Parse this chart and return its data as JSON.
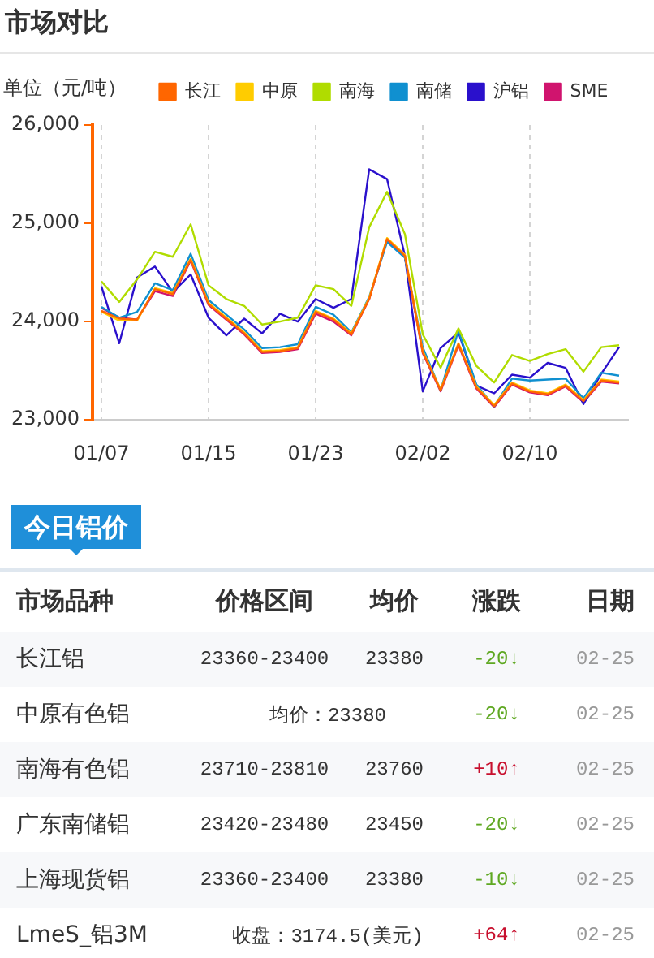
{
  "chart_data": [
    {
      "type": "line",
      "title": "市场对比",
      "ylabel": "单位（元/吨）",
      "categories": [
        "01/07",
        null,
        null,
        null,
        null,
        null,
        "01/15",
        null,
        null,
        null,
        null,
        null,
        "01/23",
        null,
        null,
        null,
        null,
        null,
        "02/02",
        null,
        null,
        null,
        null,
        null,
        "02/10",
        null,
        null,
        null,
        null,
        null
      ],
      "series": [
        {
          "name": "长江",
          "color": "#ff6600",
          "values": [
            24110,
            24030,
            24020,
            24330,
            24280,
            24630,
            24180,
            24030,
            23880,
            23690,
            23700,
            23730,
            24100,
            24020,
            23870,
            24230,
            24840,
            24670,
            23690,
            23300,
            23770,
            23330,
            23140,
            23370,
            23290,
            23260,
            23350,
            23190,
            23400,
            23380
          ]
        },
        {
          "name": "中原",
          "color": "#ffcc00",
          "values": [
            24100,
            24010,
            24010,
            24340,
            24290,
            24640,
            24190,
            24040,
            23890,
            23700,
            23710,
            23740,
            24110,
            24030,
            23880,
            24240,
            24850,
            24680,
            23700,
            23310,
            23780,
            23340,
            23150,
            23380,
            23300,
            23270,
            23360,
            23200,
            23410,
            23390
          ]
        },
        {
          "name": "南海",
          "color": "#b0dc00",
          "values": [
            24410,
            24200,
            24430,
            24710,
            24660,
            24990,
            24370,
            24230,
            24160,
            23970,
            24000,
            24040,
            24370,
            24330,
            24160,
            24960,
            25320,
            24890,
            23870,
            23530,
            23930,
            23550,
            23380,
            23660,
            23600,
            23670,
            23720,
            23490,
            23740,
            23760
          ]
        },
        {
          "name": "南储",
          "color": "#1090d0",
          "values": [
            24150,
            24040,
            24100,
            24390,
            24320,
            24690,
            24220,
            24070,
            23920,
            23730,
            23740,
            23770,
            24150,
            24070,
            23890,
            24250,
            24810,
            24650,
            23740,
            23300,
            23910,
            23360,
            23140,
            23420,
            23400,
            23410,
            23420,
            23220,
            23480,
            23450
          ]
        },
        {
          "name": "沪铝",
          "color": "#2a10cc",
          "values": [
            24360,
            23780,
            24450,
            24560,
            24300,
            24480,
            24040,
            23860,
            24030,
            23880,
            24080,
            24000,
            24230,
            24140,
            24230,
            25550,
            25450,
            24670,
            23290,
            23730,
            23890,
            23350,
            23270,
            23460,
            23430,
            23580,
            23530,
            23160,
            23470,
            23740
          ]
        },
        {
          "name": "SME",
          "color": "#d0146e",
          "values": [
            24140,
            24040,
            24020,
            24310,
            24260,
            24620,
            24170,
            24020,
            23870,
            23680,
            23690,
            23720,
            24080,
            24000,
            23860,
            24230,
            24830,
            24660,
            23680,
            23290,
            23760,
            23320,
            23130,
            23360,
            23280,
            23250,
            23340,
            23180,
            23390,
            23370
          ]
        }
      ],
      "ylim": [
        23000,
        26000
      ],
      "yticks": [
        {
          "value": 23000,
          "label": "23,000"
        },
        {
          "value": 24000,
          "label": "24,000"
        },
        {
          "value": 25000,
          "label": "25,000"
        },
        {
          "value": 26000,
          "label": "26,000"
        }
      ],
      "grid": "x",
      "legend": "top",
      "marker": "none"
    },
    {
      "type": "other",
      "title": "今日铝价",
      "annotations": [
        "市场品种",
        "价格区间",
        "均价",
        "涨跌",
        "日期",
        "长江铝",
        "23360-23400",
        "23380",
        "-20↓",
        "02-25",
        "中原有色铝",
        "均价：23380",
        "-20↓",
        "02-25",
        "南海有色铝",
        "23710-23810",
        "23760",
        "+10↑",
        "02-25",
        "广东南储铝",
        "23420-23480",
        "23450",
        "-20↓",
        "02-25",
        "上海现货铝",
        "23360-23400",
        "23380",
        "-10↓",
        "02-25",
        "LmeS_铝3M",
        "收盘：3174.5(美元)",
        "+64↑",
        "02-25"
      ],
      "colors": [
        "#333333",
        "#333333",
        "#333333",
        "#333333",
        "#333333",
        "#333333",
        "#333333",
        "#333333",
        "#5fa822",
        "#999999",
        "#333333",
        "#333333",
        "#5fa822",
        "#999999",
        "#333333",
        "#333333",
        "#333333",
        "#c8102e",
        "#999999",
        "#333333",
        "#333333",
        "#333333",
        "#5fa822",
        "#999999",
        "#333333",
        "#333333",
        "#333333",
        "#5fa822",
        "#999999",
        "#333333",
        "#333333",
        "#c8102e",
        "#999999"
      ]
    }
  ]
}
